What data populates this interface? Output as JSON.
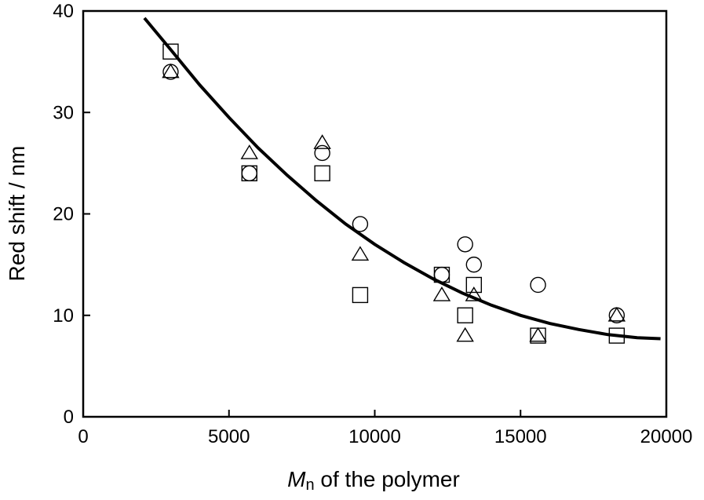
{
  "chart_data": {
    "type": "scatter",
    "xlabel_main": "M",
    "xlabel_sub": "n",
    "xlabel_rest": " of the polymer",
    "ylabel": "Red shift / nm",
    "xlim": [
      0,
      20000
    ],
    "ylim": [
      0,
      40
    ],
    "x_ticks": [
      0,
      5000,
      10000,
      15000,
      20000
    ],
    "y_ticks": [
      0,
      10,
      20,
      30,
      40
    ],
    "grid": false,
    "series": [
      {
        "marker": "square",
        "points": [
          [
            3000,
            36
          ],
          [
            5700,
            24
          ],
          [
            8200,
            24
          ],
          [
            9500,
            12
          ],
          [
            12300,
            14
          ],
          [
            13100,
            10
          ],
          [
            13400,
            13
          ],
          [
            15600,
            8
          ],
          [
            18300,
            8
          ]
        ]
      },
      {
        "marker": "circle",
        "points": [
          [
            3000,
            34
          ],
          [
            5700,
            24
          ],
          [
            8200,
            26
          ],
          [
            9500,
            19
          ],
          [
            12300,
            14
          ],
          [
            13100,
            17
          ],
          [
            13400,
            15
          ],
          [
            15600,
            13
          ],
          [
            18300,
            10
          ]
        ]
      },
      {
        "marker": "triangle",
        "points": [
          [
            3000,
            34
          ],
          [
            5700,
            26
          ],
          [
            8200,
            27
          ],
          [
            9500,
            16
          ],
          [
            12300,
            12
          ],
          [
            13100,
            8
          ],
          [
            13400,
            12
          ],
          [
            15600,
            8
          ],
          [
            18300,
            10
          ]
        ]
      }
    ],
    "fit_curve": [
      [
        2100,
        39.3
      ],
      [
        3000,
        36.2
      ],
      [
        4000,
        32.7
      ],
      [
        5000,
        29.5
      ],
      [
        6000,
        26.5
      ],
      [
        7000,
        23.8
      ],
      [
        8000,
        21.3
      ],
      [
        9000,
        19.0
      ],
      [
        10000,
        17.0
      ],
      [
        11000,
        15.2
      ],
      [
        12000,
        13.6
      ],
      [
        13000,
        12.2
      ],
      [
        14000,
        11.0
      ],
      [
        15000,
        10.0
      ],
      [
        16000,
        9.2
      ],
      [
        17000,
        8.6
      ],
      [
        18000,
        8.1
      ],
      [
        19000,
        7.8
      ],
      [
        19800,
        7.7
      ]
    ]
  }
}
